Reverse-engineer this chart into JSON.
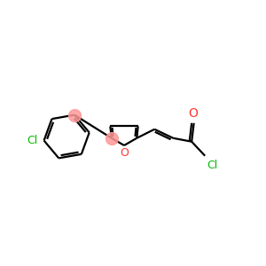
{
  "bg_color": "#ffffff",
  "bond_color": "#000000",
  "O_color": "#ff3333",
  "Cl_color": "#00bb00",
  "junction_color": "#ff9999",
  "figsize": [
    3.0,
    3.0
  ],
  "dpi": 100,
  "bond_lw": 1.6,
  "xlim": [
    -3.3,
    2.6
  ],
  "ylim": [
    -1.3,
    1.3
  ]
}
